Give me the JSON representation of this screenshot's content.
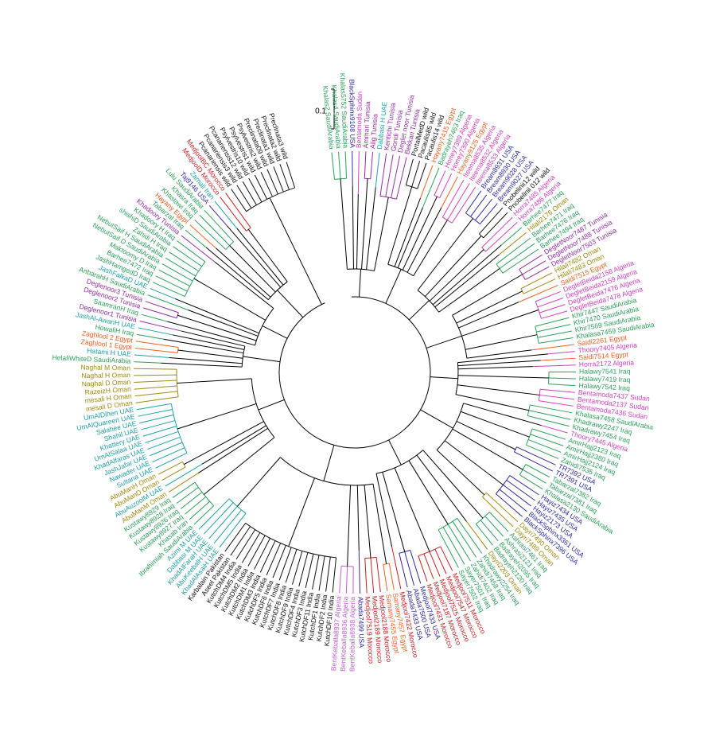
{
  "scale_label": "0.1",
  "taxa": [
    {
      "label": "Khalas2 SaudiArabia",
      "color": "#2ca05a"
    },
    {
      "label": "Khalas4 SaudiArabia",
      "color": "#2ca05a"
    },
    {
      "label": "Khalas5752 SaudiArabia",
      "color": "#2ca05a"
    },
    {
      "label": "BlackSphinx9108 USA",
      "color": "#2b2ba0"
    },
    {
      "label": "Bentamoda Sudan",
      "color": "#d040c0"
    },
    {
      "label": "Ammari Tunisia",
      "color": "#9030a0"
    },
    {
      "label": "Alig Tunisia",
      "color": "#9030a0"
    },
    {
      "label": "Dabbasi H UAE",
      "color": "#20a0a8"
    },
    {
      "label": "Kentichi Tunisia",
      "color": "#9030a0"
    },
    {
      "label": "Gondi Tunisia",
      "color": "#9030a0"
    },
    {
      "label": "Deglet noor Tunisia",
      "color": "#9030a0"
    },
    {
      "label": "Bekkari Tunisia",
      "color": "#9030a0"
    },
    {
      "label": "PortalMedD wild",
      "color": "#111111"
    },
    {
      "label": "Pacaulis85 wild",
      "color": "#111111"
    },
    {
      "label": "Pacaulis14 wild",
      "color": "#111111"
    },
    {
      "label": "Hayany7415 Egypt",
      "color": "#f06020"
    },
    {
      "label": "Badrayeh7463 Iraq",
      "color": "#2ca05a"
    },
    {
      "label": "Honey7389 Algeria",
      "color": "#d040c0"
    },
    {
      "label": "Honey7390 Algeria",
      "color": "#d040c0"
    },
    {
      "label": "Hayany9125 Egypt",
      "color": "#f06020"
    },
    {
      "label": "Iteema8535 Algeria",
      "color": "#d040c0"
    },
    {
      "label": "Iteema8532 Algeria",
      "color": "#d040c0"
    },
    {
      "label": "Iteema8533 Algeria",
      "color": "#d040c0"
    },
    {
      "label": "Bream8931 USA",
      "color": "#2b2ba0"
    },
    {
      "label": "Bream8930 USA",
      "color": "#2b2ba0"
    },
    {
      "label": "Bream9028 USA",
      "color": "#2b2ba0"
    },
    {
      "label": "Bream9027 USA",
      "color": "#2b2ba0"
    },
    {
      "label": "Pnobelinii12 wild",
      "color": "#111111"
    },
    {
      "label": "Pnobelinii 012 wild",
      "color": "#111111"
    },
    {
      "label": "Horra7485 Algeria",
      "color": "#d040c0"
    },
    {
      "label": "Horra7486 Algeria",
      "color": "#d040c0"
    },
    {
      "label": "Barhee7477 Iraq",
      "color": "#2ca05a"
    },
    {
      "label": "Hilali2176 Oman",
      "color": "#a08a10"
    },
    {
      "label": "Barhee7471 Iraq",
      "color": "#2ca05a"
    },
    {
      "label": "Barhee7476 Iraq",
      "color": "#2ca05a"
    },
    {
      "label": "Barhee7494 Iraq",
      "color": "#2ca05a"
    },
    {
      "label": "DegletNoor7487 Tunisia",
      "color": "#9030a0"
    },
    {
      "label": "DegletNoor7488 Tunisia",
      "color": "#9030a0"
    },
    {
      "label": "DegletNoor7503 Tunisia",
      "color": "#9030a0"
    },
    {
      "label": "Hilali7482 Oman",
      "color": "#a08a10"
    },
    {
      "label": "Hilali7483 Oman",
      "color": "#a08a10"
    },
    {
      "label": "Saidi7515 Egypt",
      "color": "#f06020"
    },
    {
      "label": "DegletBeida2158 Algeria",
      "color": "#d040c0"
    },
    {
      "label": "DegletBeida2159 Algeria",
      "color": "#d040c0"
    },
    {
      "label": "DegletBeida7476 Algeria",
      "color": "#d040c0"
    },
    {
      "label": "DegletBeida7478 Algeria",
      "color": "#d040c0"
    },
    {
      "label": "Khir7447 SaudiArabia",
      "color": "#2ca05a"
    },
    {
      "label": "Khir7470 SaudiArabia",
      "color": "#2ca05a"
    },
    {
      "label": "Khir7569 SaudiArabia",
      "color": "#2ca05a"
    },
    {
      "label": "Khalasa7459 SaudiArabia",
      "color": "#2ca05a"
    },
    {
      "label": "Saidi2261 Egypt",
      "color": "#f06020"
    },
    {
      "label": "Thoory7405 Algeria",
      "color": "#d040c0"
    },
    {
      "label": "Saidi7514 Egypt",
      "color": "#f06020"
    },
    {
      "label": "Horra2172 Algeria",
      "color": "#d040c0"
    },
    {
      "label": "Halawy7541 Iraq",
      "color": "#2ca05a"
    },
    {
      "label": "Halawy7419 Iraq",
      "color": "#2ca05a"
    },
    {
      "label": "Halawy7542 Iraq",
      "color": "#2ca05a"
    },
    {
      "label": "Bentamoda7437 Sudan",
      "color": "#d040c0"
    },
    {
      "label": "Bentamoda2137 Sudan",
      "color": "#d040c0"
    },
    {
      "label": "Bentamoda7436 Sudan",
      "color": "#d040c0"
    },
    {
      "label": "Khalasa7458 SaudiArabia",
      "color": "#2ca05a"
    },
    {
      "label": "Khadrawy2247 Iraq",
      "color": "#2ca05a"
    },
    {
      "label": "Khadrawy7454 Iraq",
      "color": "#2ca05a"
    },
    {
      "label": "Thoory7445 Algeria",
      "color": "#d040c0"
    },
    {
      "label": "AmirHajj2123 Iraq",
      "color": "#2ca05a"
    },
    {
      "label": "AmirHajj2380 Iraq",
      "color": "#2ca05a"
    },
    {
      "label": "AmirHajj2124 Iraq",
      "color": "#2ca05a"
    },
    {
      "label": "Zahidi7535 Iraq",
      "color": "#2ca05a"
    },
    {
      "label": "TR7392 USA",
      "color": "#2b2ba0"
    },
    {
      "label": "TR7391 USA",
      "color": "#2b2ba0"
    },
    {
      "label": "Tabarzal7382 Iraq",
      "color": "#2ca05a"
    },
    {
      "label": "Tabarzal7381 Iraq",
      "color": "#2ca05a"
    },
    {
      "label": "Khalasa2130 SaudiArabia",
      "color": "#2ca05a"
    },
    {
      "label": "Hayiz7434 USA",
      "color": "#2b2ba0"
    },
    {
      "label": "Hayiz7435 USA",
      "color": "#2b2ba0"
    },
    {
      "label": "Hayiz2173 USA",
      "color": "#2b2ba0"
    },
    {
      "label": "BlackSphinx3361 USA",
      "color": "#2b2ba0"
    },
    {
      "label": "BlackSphinx7396 USA",
      "color": "#2b2ba0"
    },
    {
      "label": "Dayri7490 Oman",
      "color": "#a08a10"
    },
    {
      "label": "Dayri7489 Oman",
      "color": "#a08a10"
    },
    {
      "label": "Ashrasi7461 Iraq",
      "color": "#2ca05a"
    },
    {
      "label": "Ashrasi2121 Iraq",
      "color": "#2ca05a"
    },
    {
      "label": "Badrayeh2095 Iraq",
      "color": "#2ca05a"
    },
    {
      "label": "Badrayeh2120 Iraq",
      "color": "#2ca05a"
    },
    {
      "label": "Dayri2203 Oman",
      "color": "#a08a10"
    },
    {
      "label": "Khadrawy2254 Iraq",
      "color": "#2ca05a"
    },
    {
      "label": "Zahidi7458 Iraq",
      "color": "#2ca05a"
    },
    {
      "label": "Zahidi7402 Iraq",
      "color": "#2ca05a"
    },
    {
      "label": "Sayer7501 Iraq",
      "color": "#2ca05a"
    },
    {
      "label": "Sayer7502 Iraq",
      "color": "#2ca05a"
    },
    {
      "label": "Medjool7511 Morocco",
      "color": "#c82020"
    },
    {
      "label": "Medjool7547 Morocco",
      "color": "#c82020"
    },
    {
      "label": "Medjool7525 Morocco",
      "color": "#c82020"
    },
    {
      "label": "Medjool7187 Morocco",
      "color": "#c82020"
    },
    {
      "label": "Medjool7431 Morocco",
      "color": "#c82020"
    },
    {
      "label": "Medjool7433 USA",
      "color": "#2b2ba0"
    },
    {
      "label": "Abada7500 USA",
      "color": "#2b2ba0"
    },
    {
      "label": "Abada7433 USA",
      "color": "#2b2ba0"
    },
    {
      "label": "Medjool7422 Morocco",
      "color": "#c82020"
    },
    {
      "label": "Samany7457 Egypt",
      "color": "#f06020"
    },
    {
      "label": "Samany7455 Egypt",
      "color": "#f06020"
    },
    {
      "label": "Medjool2188 Morocco",
      "color": "#c82020"
    },
    {
      "label": "Medjool2189 Morocco",
      "color": "#c82020"
    },
    {
      "label": "Medjool7519 Morocco",
      "color": "#c82020"
    },
    {
      "label": "Abada7499 USA",
      "color": "#2b2ba0"
    },
    {
      "label": "BentKeballa8938 Algeria",
      "color": "#c060d0"
    },
    {
      "label": "BentKeballa8936 Algeria",
      "color": "#c060d0"
    },
    {
      "label": "BentKeballa8937 Algeria",
      "color": "#c060d0"
    },
    {
      "label": "KutchDF10 India",
      "color": "#111111"
    },
    {
      "label": "KutchDF2 India",
      "color": "#111111"
    },
    {
      "label": "KutchDF1 India",
      "color": "#111111"
    },
    {
      "label": "KutchDF11 India",
      "color": "#111111"
    },
    {
      "label": "KutchDF3 India",
      "color": "#111111"
    },
    {
      "label": "KutchDF4 India",
      "color": "#111111"
    },
    {
      "label": "KutchDF9 India",
      "color": "#111111"
    },
    {
      "label": "KutchDF8 India",
      "color": "#111111"
    },
    {
      "label": "KutchDF7 India",
      "color": "#111111"
    },
    {
      "label": "KutchDF6 India",
      "color": "#111111"
    },
    {
      "label": "KutchDF5 India",
      "color": "#111111"
    },
    {
      "label": "KutchDM3 India",
      "color": "#111111"
    },
    {
      "label": "KutchDM1 India",
      "color": "#111111"
    },
    {
      "label": "KutchDM2 India",
      "color": "#111111"
    },
    {
      "label": "KutchDM5 India",
      "color": "#111111"
    },
    {
      "label": "KutchDM4 India",
      "color": "#111111"
    },
    {
      "label": "Aseel Pakistan",
      "color": "#111111"
    },
    {
      "label": "Karbalain Pakistan",
      "color": "#111111"
    },
    {
      "label": "KhadAlAsaiH UAE",
      "color": "#20a0a8"
    },
    {
      "label": "AbuKeebalH UAE",
      "color": "#20a0a8"
    },
    {
      "label": "KhadAlFaraH UAE",
      "color": "#20a0a8"
    },
    {
      "label": "Dabbasi M UAE",
      "color": "#20a0a8"
    },
    {
      "label": "Azimi M UAE",
      "color": "#20a0a8"
    },
    {
      "label": "Ibrahimiah SaudiArabia",
      "color": "#2ca05a"
    },
    {
      "label": "Khasab Iran",
      "color": "#2ca05a"
    },
    {
      "label": "Kustawy8927 Iraq",
      "color": "#2ca05a"
    },
    {
      "label": "Kustawy8926 Iraq",
      "color": "#2ca05a"
    },
    {
      "label": "Kustawy8928 Iraq",
      "color": "#2ca05a"
    },
    {
      "label": "Kustawy8929 Iraq",
      "color": "#2ca05a"
    },
    {
      "label": "AbuManM Oman",
      "color": "#a08a10"
    },
    {
      "label": "AbuAuzoolM UAE",
      "color": "#20a0a8"
    },
    {
      "label": "AbuManD Oman",
      "color": "#a08a10"
    },
    {
      "label": "AbuManH Oman",
      "color": "#a08a10"
    },
    {
      "label": "Sultana UAE",
      "color": "#20a0a8"
    },
    {
      "label": "Nawader UAE",
      "color": "#20a0a8"
    },
    {
      "label": "JashJafar UAE",
      "color": "#20a0a8"
    },
    {
      "label": "KhadAlfaras UAE",
      "color": "#20a0a8"
    },
    {
      "label": "UmAlSalaa UAE",
      "color": "#20a0a8"
    },
    {
      "label": "Khattery UAE",
      "color": "#20a0a8"
    },
    {
      "label": "Shahil UAE",
      "color": "#20a0a8"
    },
    {
      "label": "Salahee UAE",
      "color": "#20a0a8"
    },
    {
      "label": "UmAlQuareen UAE",
      "color": "#20a0a8"
    },
    {
      "label": "UmAlDihen UAE",
      "color": "#20a0a8"
    },
    {
      "label": "mesali D Oman",
      "color": "#a08a10"
    },
    {
      "label": "mesali H Oman",
      "color": "#a08a10"
    },
    {
      "label": "RazeizH Oman",
      "color": "#a08a10"
    },
    {
      "label": "Naghal D Oman",
      "color": "#a08a10"
    },
    {
      "label": "Naghal H Oman",
      "color": "#a08a10"
    },
    {
      "label": "Naghal M Oman",
      "color": "#a08a10"
    },
    {
      "label": "HelaliWhiteD SaudiArabia",
      "color": "#2ca05a"
    },
    {
      "label": "Hatami H UAE",
      "color": "#20a0a8"
    },
    {
      "label": "Zaghlool 1 Egypt",
      "color": "#f06020"
    },
    {
      "label": "Zaghlool 2 Egypt",
      "color": "#f06020"
    },
    {
      "label": "HowaliH Iraq",
      "color": "#2ca05a"
    },
    {
      "label": "JashAl-AwanH UAE",
      "color": "#20a0a8"
    },
    {
      "label": "Deglenoor1 Tunisia",
      "color": "#9030a0"
    },
    {
      "label": "SaamranH Iraq",
      "color": "#2ca05a"
    },
    {
      "label": "Deglenoor2 Tunisia",
      "color": "#9030a0"
    },
    {
      "label": "Deglenoor3 Tunisia",
      "color": "#9030a0"
    },
    {
      "label": "AnbarahH SaudiArabia",
      "color": "#2ca05a"
    },
    {
      "label": "JashFalkaD UAE",
      "color": "#20a0a8"
    },
    {
      "label": "JashHamgedD Iraq",
      "color": "#2ca05a"
    },
    {
      "label": "Barhee7472 Iraq",
      "color": "#2ca05a"
    },
    {
      "label": "Maktoomy D Iraq",
      "color": "#2ca05a"
    },
    {
      "label": "NebutSaif D SaudiArabia",
      "color": "#2ca05a"
    },
    {
      "label": "NebutSaif H SaudiArabia",
      "color": "#2ca05a"
    },
    {
      "label": "Zahidi H Iraq",
      "color": "#2ca05a"
    },
    {
      "label": "shishiD SaudiArabia",
      "color": "#2ca05a"
    },
    {
      "label": "Khadoory H Iraq",
      "color": "#2ca05a"
    },
    {
      "label": "Khadoory Tunisia",
      "color": "#9030a0"
    },
    {
      "label": "Tabarzal Iraq",
      "color": "#2ca05a"
    },
    {
      "label": "Hayany Egypt",
      "color": "#f06020"
    },
    {
      "label": "Khastawi Iraq",
      "color": "#2ca05a"
    },
    {
      "label": "Khasra Iraq",
      "color": "#2ca05a"
    },
    {
      "label": "Lulu SaudiArabia",
      "color": "#2ca05a"
    },
    {
      "label": "Taj9146 USA",
      "color": "#2b2ba0"
    },
    {
      "label": "Zamali Iran",
      "color": "#20a0a8"
    },
    {
      "label": "MedjoolD Morocco",
      "color": "#c82020"
    },
    {
      "label": "MedjoolBC Morocco",
      "color": "#c82020"
    },
    {
      "label": "Pcanariensis wild",
      "color": "#111111"
    },
    {
      "label": "Pcanariensis3 wild",
      "color": "#111111"
    },
    {
      "label": "Pcanariensis12 wild",
      "color": "#111111"
    },
    {
      "label": "Psylvestris10 wild",
      "color": "#111111"
    },
    {
      "label": "Psylvestris1 wild",
      "color": "#111111"
    },
    {
      "label": "Psylvestris2 wild",
      "color": "#111111"
    },
    {
      "label": "Preclinata09 wild",
      "color": "#111111"
    },
    {
      "label": "Preclinata1 wild",
      "color": "#111111"
    },
    {
      "label": "Preclinata2 wild",
      "color": "#111111"
    },
    {
      "label": "Preclinata3 wild",
      "color": "#111111"
    }
  ]
}
